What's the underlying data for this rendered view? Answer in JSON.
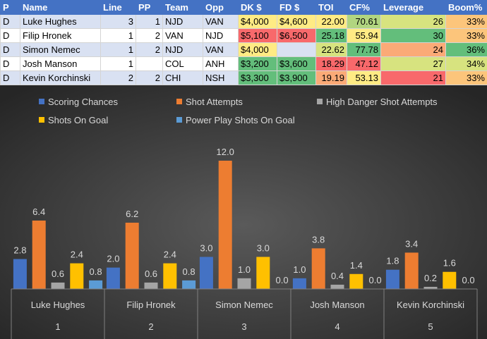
{
  "table": {
    "headers": [
      "P",
      "Name",
      "Line",
      "PP",
      "Team",
      "Opp",
      "DK $",
      "FD $",
      "TOI",
      "CF%",
      "Leverage",
      "Boom%"
    ],
    "rows": [
      [
        "D",
        "Luke Hughes",
        "3",
        "1",
        "NJD",
        "VAN",
        "$4,000",
        "$4,600",
        "22.00",
        "70.61",
        "26",
        "33%"
      ],
      [
        "D",
        "Filip Hronek",
        "1",
        "2",
        "VAN",
        "NJD",
        "$5,100",
        "$6,500",
        "25.18",
        "55.94",
        "30",
        "33%"
      ],
      [
        "D",
        "Simon Nemec",
        "1",
        "2",
        "NJD",
        "VAN",
        "$4,000",
        "",
        "22.62",
        "77.78",
        "24",
        "36%"
      ],
      [
        "D",
        "Josh Manson",
        "1",
        "",
        "COL",
        "ANH",
        "$3,200",
        "$3,600",
        "18.29",
        "47.12",
        "27",
        "34%"
      ],
      [
        "D",
        "Kevin Korchinski",
        "2",
        "2",
        "CHI",
        "NSH",
        "$3,300",
        "$3,900",
        "19.19",
        "53.13",
        "21",
        "33%"
      ]
    ]
  },
  "colors": {
    "header": "#4472c4",
    "band": "#d9e1f2",
    "scale_yellow": "#ffeb84",
    "scale_red": "#f8696b",
    "scale_green": "#63be7b",
    "chart_bg_center": "#5a5a5a",
    "chart_bg_edge": "#262626"
  },
  "chart_data": {
    "type": "bar",
    "categories": [
      "Luke Hughes",
      "Filip Hronek",
      "Simon Nemec",
      "Josh Manson",
      "Kevin Korchinski"
    ],
    "category_groups": [
      "1",
      "2",
      "3",
      "4",
      "5"
    ],
    "legend_position": "top",
    "grid": false,
    "ylim": [
      0,
      12.5
    ],
    "series": [
      {
        "name": "Scoring Chances",
        "values": [
          2.8,
          2.0,
          3.0,
          1.0,
          1.8
        ],
        "color": "#4472c4"
      },
      {
        "name": "Shot Attempts",
        "values": [
          6.4,
          6.2,
          12.0,
          3.8,
          3.4
        ],
        "color": "#ed7d31"
      },
      {
        "name": "High Danger Shot Attempts",
        "values": [
          0.6,
          0.6,
          1.0,
          0.4,
          0.2
        ],
        "color": "#a5a5a5"
      },
      {
        "name": "Shots On Goal",
        "values": [
          2.4,
          2.4,
          3.0,
          1.4,
          1.6
        ],
        "color": "#ffc000"
      },
      {
        "name": "Power Play Shots On Goal",
        "values": [
          0.8,
          0.8,
          0.0,
          0.0,
          0.0
        ],
        "color": "#5b9bd5"
      }
    ]
  }
}
